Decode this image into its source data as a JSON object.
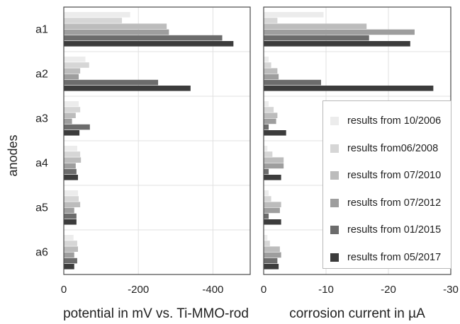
{
  "chart_data": {
    "type": "bar",
    "orientation": "horizontal",
    "y_axis_label": "anodes",
    "categories": [
      "a1",
      "a2",
      "a3",
      "a4",
      "a5",
      "a6"
    ],
    "series_colors": [
      "#ececec",
      "#d6d6d6",
      "#bcbcbc",
      "#9e9e9e",
      "#6c6c6c",
      "#3c3c3c"
    ],
    "legend": {
      "placement": "right-inside",
      "entries": [
        "results from 10/2006",
        "results from06/2008",
        "results from 07/2010",
        "results from 07/2012",
        "results from 01/2015",
        "results from 05/2017"
      ]
    },
    "grid": true,
    "panels": [
      {
        "xlabel": "potential in mV vs. Ti-MMO-rod",
        "xlim": [
          0,
          -500
        ],
        "ticks": [
          0,
          -200,
          -400
        ],
        "tick_labels": [
          "0",
          "-200",
          "-400"
        ],
        "series": [
          {
            "name": "results from 10/2006",
            "values": [
              -178,
              -58,
              -40,
              -36,
              -38,
              -26
            ]
          },
          {
            "name": "results from06/2008",
            "values": [
              -156,
              -68,
              -44,
              -44,
              -40,
              -36
            ]
          },
          {
            "name": "results from 07/2010",
            "values": [
              -276,
              -44,
              -32,
              -46,
              -44,
              -38
            ]
          },
          {
            "name": "results from 07/2012",
            "values": [
              -282,
              -40,
              -22,
              -32,
              -28,
              -28
            ]
          },
          {
            "name": "results from 01/2015",
            "values": [
              -425,
              -253,
              -70,
              -34,
              -34,
              -36
            ]
          },
          {
            "name": "results from 05/2017",
            "values": [
              -455,
              -340,
              -42,
              -38,
              -34,
              -28
            ]
          }
        ]
      },
      {
        "xlabel": "corrosion current in µA",
        "xlim": [
          0,
          -30
        ],
        "ticks": [
          0,
          -10,
          -20,
          -30
        ],
        "tick_labels": [
          "0",
          "-10",
          "-20",
          "-30"
        ],
        "series": [
          {
            "name": "results from 10/2006",
            "values": [
              -9.6,
              -0.8,
              -0.8,
              -0.6,
              -0.8,
              -0.6
            ]
          },
          {
            "name": "results from06/2008",
            "values": [
              -2.2,
              -1.2,
              -1.6,
              -1.4,
              -1.2,
              -1.0
            ]
          },
          {
            "name": "results from 07/2010",
            "values": [
              -16.5,
              -2.2,
              -2.2,
              -3.2,
              -2.8,
              -2.6
            ]
          },
          {
            "name": "results from 07/2012",
            "values": [
              -24.2,
              -2.4,
              -2.0,
              -3.2,
              -2.6,
              -2.8
            ]
          },
          {
            "name": "results from 01/2015",
            "values": [
              -16.9,
              -9.2,
              -0.8,
              -0.8,
              -0.8,
              -2.2
            ]
          },
          {
            "name": "results from 05/2017",
            "values": [
              -23.5,
              -27.2,
              -3.6,
              -2.8,
              -2.8,
              -2.4
            ]
          }
        ]
      }
    ]
  }
}
